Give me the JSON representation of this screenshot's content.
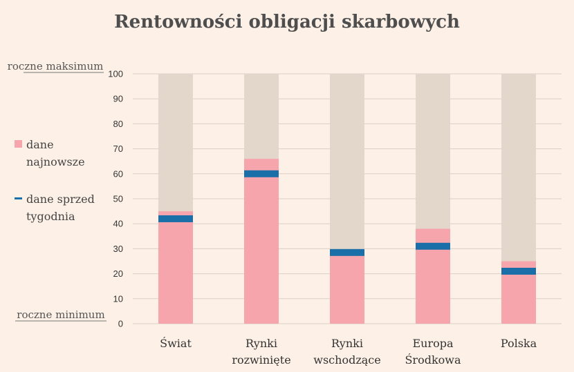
{
  "chart_data": {
    "type": "bar",
    "title": "Rentowności obligacji skarbowych",
    "categories": [
      [
        "Świat"
      ],
      [
        "Rynki",
        "rozwinięte"
      ],
      [
        "Rynki",
        "wschodzące"
      ],
      [
        "Europa",
        "Środkowa"
      ],
      [
        "Polska"
      ]
    ],
    "series": [
      {
        "name": "dane najnowsze",
        "values": [
          45,
          66,
          28,
          38,
          25
        ]
      },
      {
        "name": "dane sprzed tygodnia",
        "values": [
          42,
          60,
          28.5,
          31,
          21
        ]
      }
    ],
    "ylim": [
      0,
      100
    ],
    "yticks": [
      0,
      10,
      20,
      30,
      40,
      50,
      60,
      70,
      80,
      90,
      100
    ],
    "ymax_label": "roczne maksimum",
    "ymin_label": "roczne minimum",
    "legend": [
      [
        "dane",
        "najnowsze"
      ],
      [
        "dane sprzed",
        "tygodnia"
      ]
    ],
    "legend_position": "left",
    "grid": true,
    "colors": {
      "range_bar": "#e3d6cb",
      "latest": "#f7a5ac",
      "week_ago": "#1b6fa8",
      "grid": "#d9cfc7",
      "background": "#fdf0e6"
    }
  }
}
